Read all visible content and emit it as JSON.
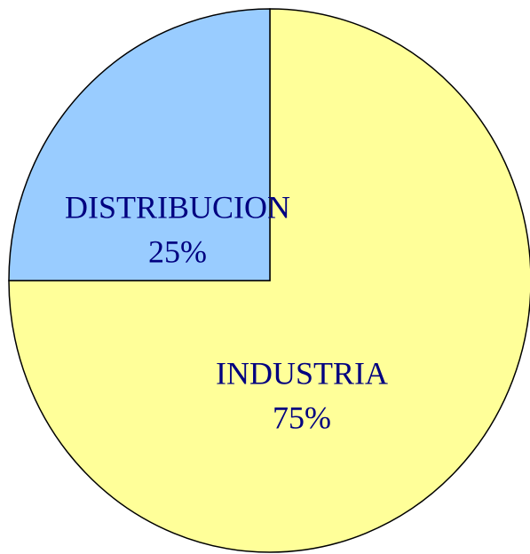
{
  "chart_data": {
    "type": "pie",
    "categories": [
      "INDUSTRIA",
      "DISTRIBUCION"
    ],
    "values": [
      75,
      25
    ],
    "value_labels": [
      "75%",
      "25%"
    ],
    "colors": [
      "#ffff99",
      "#99ccff"
    ]
  }
}
